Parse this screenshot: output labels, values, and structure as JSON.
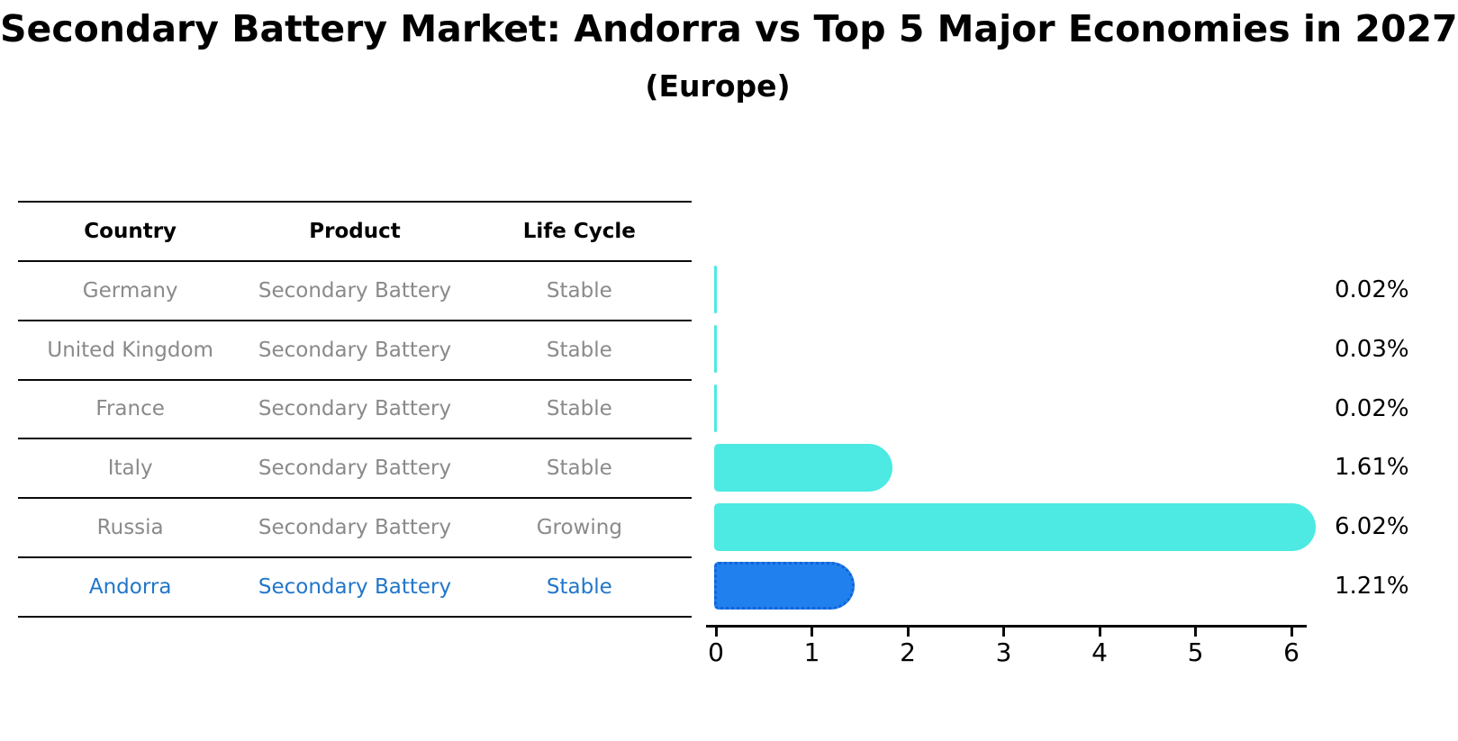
{
  "table": {
    "headers": [
      "Country",
      "Product",
      "Life Cycle"
    ],
    "rows": [
      {
        "country": "Germany",
        "product": "Secondary Battery",
        "life_cycle": "Stable",
        "highlight": false
      },
      {
        "country": "United Kingdom",
        "product": "Secondary Battery",
        "life_cycle": "Stable",
        "highlight": false
      },
      {
        "country": "France",
        "product": "Secondary Battery",
        "life_cycle": "Stable",
        "highlight": false
      },
      {
        "country": "Italy",
        "product": "Secondary Battery",
        "life_cycle": "Stable",
        "highlight": false
      },
      {
        "country": "Russia",
        "product": "Secondary Battery",
        "life_cycle": "Growing",
        "highlight": false
      },
      {
        "country": "Andorra",
        "product": "Secondary Battery",
        "life_cycle": "Stable",
        "highlight": true
      }
    ]
  },
  "chart_data": {
    "type": "bar",
    "orientation": "horizontal",
    "title": "Secondary Battery Market: Andorra vs Top 5 Major Economies in 2027",
    "subtitle": "(Europe)",
    "categories": [
      "Germany",
      "United Kingdom",
      "France",
      "Italy",
      "Russia",
      "Andorra"
    ],
    "values": [
      0.02,
      0.03,
      0.02,
      1.61,
      6.02,
      1.21
    ],
    "value_labels": [
      "0.02%",
      "0.03%",
      "0.02%",
      "1.61%",
      "6.02%",
      "1.21%"
    ],
    "x_ticks": [
      0,
      1,
      2,
      3,
      4,
      5,
      6
    ],
    "xlim": [
      0,
      6.4
    ],
    "highlight_index": 5,
    "bar_color": "#4DE9E3",
    "highlight_bar_color": "#1F80EE",
    "highlight_border_color": "#1462D6",
    "grid": false,
    "legend": false
  },
  "colors": {
    "row_text": "#8a8a8a",
    "header_text": "#000000",
    "highlight_text": "#2176C9",
    "axis": "#0a0a0a",
    "background": "#ffffff"
  }
}
